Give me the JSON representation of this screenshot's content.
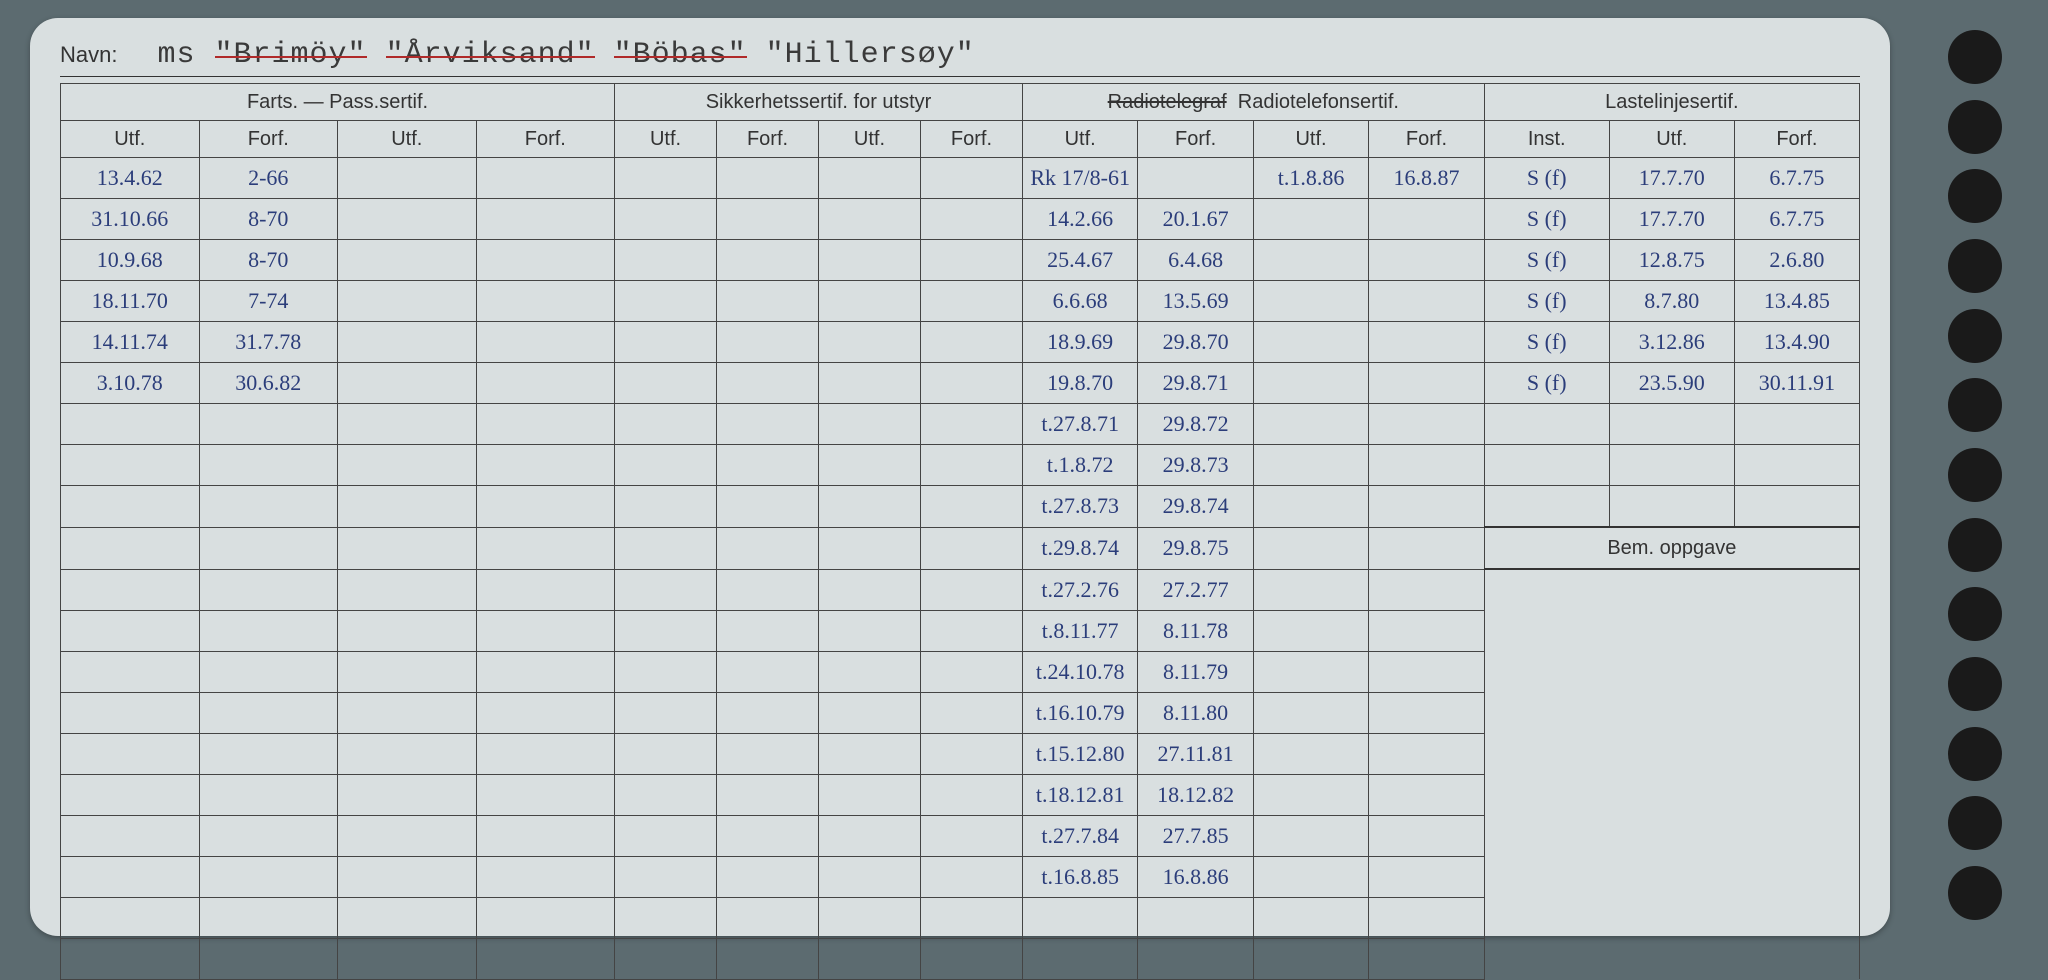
{
  "navn_label": "Navn:",
  "ship_names": {
    "prefix": "ms",
    "struck": [
      "\"Brimöy\"",
      "\"Årviksand\"",
      "\"Böbas\""
    ],
    "active": "\"Hillersøy\""
  },
  "sections": {
    "farts": "Farts. — Pass.sertif.",
    "sikker": "Sikkerhetssertif. for utstyr",
    "radio_struck": "Radiotelegraf",
    "radio": "Radiotelefonsertif.",
    "laste": "Lastelinjesertif.",
    "bem": "Bem. oppgave"
  },
  "subheaders": {
    "utf": "Utf.",
    "forf": "Forf.",
    "inst": "Inst."
  },
  "farts_rows": [
    {
      "utf": "13.4.62",
      "forf": "2-66"
    },
    {
      "utf": "31.10.66",
      "forf": "8-70"
    },
    {
      "utf": "10.9.68",
      "forf": "8-70"
    },
    {
      "utf": "18.11.70",
      "forf": "7-74"
    },
    {
      "utf": "14.11.74",
      "forf": "31.7.78"
    },
    {
      "utf": "3.10.78",
      "forf": "30.6.82"
    }
  ],
  "radio_rows": [
    {
      "utf": "Rk 17/8-61",
      "forf": "",
      "utf2": "t.1.8.86",
      "forf2": "16.8.87"
    },
    {
      "utf": "14.2.66",
      "forf": "20.1.67",
      "utf2": "",
      "forf2": ""
    },
    {
      "utf": "25.4.67",
      "forf": "6.4.68",
      "utf2": "",
      "forf2": ""
    },
    {
      "utf": "6.6.68",
      "forf": "13.5.69",
      "utf2": "",
      "forf2": ""
    },
    {
      "utf": "18.9.69",
      "forf": "29.8.70",
      "utf2": "",
      "forf2": ""
    },
    {
      "utf": "19.8.70",
      "forf": "29.8.71",
      "utf2": "",
      "forf2": ""
    },
    {
      "utf": "t.27.8.71",
      "forf": "29.8.72",
      "utf2": "",
      "forf2": ""
    },
    {
      "utf": "t.1.8.72",
      "forf": "29.8.73",
      "utf2": "",
      "forf2": ""
    },
    {
      "utf": "t.27.8.73",
      "forf": "29.8.74",
      "utf2": "",
      "forf2": ""
    },
    {
      "utf": "t.29.8.74",
      "forf": "29.8.75",
      "utf2": "",
      "forf2": ""
    },
    {
      "utf": "t.27.2.76",
      "forf": "27.2.77",
      "utf2": "",
      "forf2": ""
    },
    {
      "utf": "t.8.11.77",
      "forf": "8.11.78",
      "utf2": "",
      "forf2": ""
    },
    {
      "utf": "t.24.10.78",
      "forf": "8.11.79",
      "utf2": "",
      "forf2": ""
    },
    {
      "utf": "t.16.10.79",
      "forf": "8.11.80",
      "utf2": "",
      "forf2": ""
    },
    {
      "utf": "t.15.12.80",
      "forf": "27.11.81",
      "utf2": "",
      "forf2": ""
    },
    {
      "utf": "t.18.12.81",
      "forf": "18.12.82",
      "utf2": "",
      "forf2": ""
    },
    {
      "utf": "t.27.7.84",
      "forf": "27.7.85",
      "utf2": "",
      "forf2": ""
    },
    {
      "utf": "t.16.8.85",
      "forf": "16.8.86",
      "utf2": "",
      "forf2": ""
    }
  ],
  "laste_rows": [
    {
      "inst": "S (f)",
      "utf": "17.7.70",
      "forf": "6.7.75"
    },
    {
      "inst": "S (f)",
      "utf": "17.7.70",
      "forf": "6.7.75"
    },
    {
      "inst": "S (f)",
      "utf": "12.8.75",
      "forf": "2.6.80"
    },
    {
      "inst": "S (f)",
      "utf": "8.7.80",
      "forf": "13.4.85"
    },
    {
      "inst": "S (f)",
      "utf": "3.12.86",
      "forf": "13.4.90"
    },
    {
      "inst": "S (f)",
      "utf": "23.5.90",
      "forf": "30.11.91"
    }
  ],
  "colors": {
    "background": "#5c6b70",
    "card": "#d9dfe0",
    "ink_blue": "#2b3d7a",
    "ink_dark": "#333333",
    "strike_red": "#b02a2a",
    "border": "#444444"
  }
}
